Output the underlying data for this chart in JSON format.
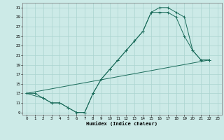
{
  "xlabel": "Humidex (Indice chaleur)",
  "bg_color": "#cceae7",
  "grid_color": "#aad4d0",
  "line_color": "#1a6b5a",
  "xlim": [
    -0.5,
    23.5
  ],
  "ylim": [
    8.5,
    32
  ],
  "xticks": [
    0,
    1,
    2,
    3,
    4,
    5,
    6,
    7,
    8,
    9,
    10,
    11,
    12,
    13,
    14,
    15,
    16,
    17,
    18,
    19,
    20,
    21,
    22,
    23
  ],
  "yticks": [
    9,
    11,
    13,
    15,
    17,
    19,
    21,
    23,
    25,
    27,
    29,
    31
  ],
  "line1_x": [
    0,
    1,
    2,
    3,
    4,
    5,
    6,
    7,
    8,
    9,
    10,
    11,
    12,
    13,
    14,
    15,
    16,
    17,
    18,
    19,
    20,
    21,
    22
  ],
  "line1_y": [
    13,
    13,
    12,
    11,
    11,
    10,
    9,
    9,
    13,
    16,
    18,
    20,
    22,
    24,
    26,
    30,
    31,
    31,
    30,
    29,
    22,
    20,
    20
  ],
  "line2_x": [
    0,
    2,
    3,
    4,
    5,
    6,
    7,
    8,
    9,
    10,
    11,
    12,
    13,
    14,
    15,
    16,
    17,
    18,
    19,
    20,
    21,
    22
  ],
  "line2_y": [
    13,
    12,
    11,
    11,
    10,
    9,
    9,
    13,
    16,
    18,
    20,
    22,
    24,
    26,
    30,
    30,
    30,
    29,
    25,
    22,
    20,
    20
  ],
  "line3_x": [
    0,
    22
  ],
  "line3_y": [
    13,
    20
  ],
  "marker": "+",
  "markersize": 3,
  "linewidth": 0.7
}
